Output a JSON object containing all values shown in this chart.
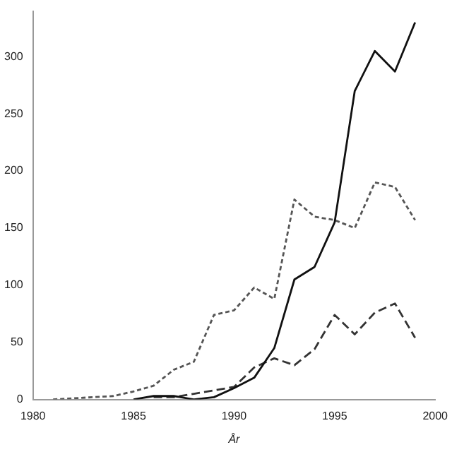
{
  "chart_data": {
    "type": "line",
    "xlabel": "År",
    "xlim": [
      1980,
      2000
    ],
    "xticks": [
      1980,
      1985,
      1990,
      1995,
      2000
    ],
    "ylim": [
      0,
      340
    ],
    "yticks": [
      0,
      50,
      100,
      150,
      200,
      250,
      300
    ],
    "grid": false,
    "legend": false,
    "marker": "none",
    "series": [
      {
        "color": "#111111",
        "line_style": "solid",
        "x": [
          1985,
          1986,
          1987,
          1988,
          1989,
          1990,
          1991,
          1992,
          1993,
          1994,
          1995,
          1996,
          1997,
          1998,
          1999
        ],
        "values": [
          0,
          3,
          3,
          0,
          2,
          10,
          19,
          45,
          105,
          116,
          155,
          270,
          305,
          287,
          330
        ]
      },
      {
        "color": "#555555",
        "line_style": "dotted",
        "x": [
          1981,
          1982,
          1983,
          1984,
          1985,
          1986,
          1987,
          1988,
          1989,
          1990,
          1991,
          1992,
          1993,
          1994,
          1995,
          1996,
          1997,
          1998,
          1999
        ],
        "values": [
          0,
          1,
          2,
          3,
          7,
          12,
          26,
          33,
          74,
          78,
          98,
          88,
          175,
          160,
          157,
          150,
          190,
          186,
          157
        ]
      },
      {
        "color": "#333333",
        "line_style": "dashed",
        "x": [
          1986,
          1987,
          1988,
          1989,
          1990,
          1991,
          1992,
          1993,
          1994,
          1995,
          1996,
          1997,
          1998,
          1999
        ],
        "values": [
          2,
          2,
          5,
          8,
          11,
          28,
          36,
          30,
          44,
          74,
          57,
          76,
          84,
          54
        ]
      }
    ]
  }
}
